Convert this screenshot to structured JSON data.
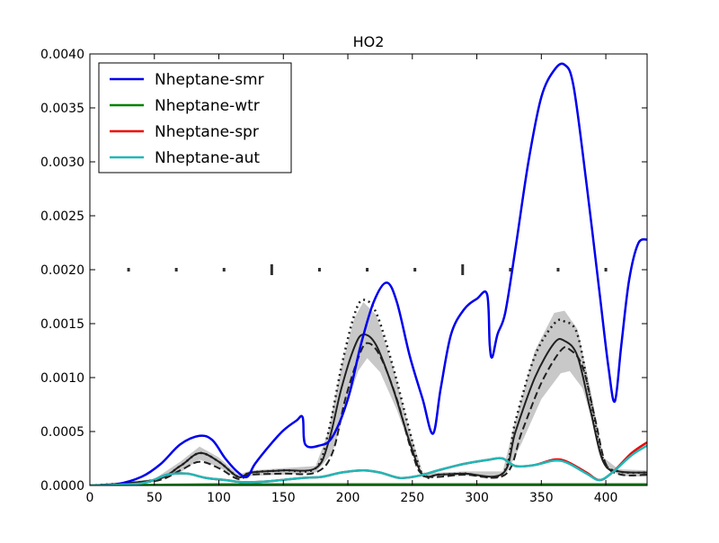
{
  "chart_data": {
    "type": "line",
    "title": "HO2",
    "xlabel": "",
    "ylabel": "",
    "xlim": [
      0,
      432
    ],
    "ylim": [
      0,
      0.004
    ],
    "grid": false,
    "legend_position": "top-left",
    "x_ticks": [
      0,
      50,
      100,
      150,
      200,
      250,
      300,
      350,
      400
    ],
    "x_tick_labels": [
      "0",
      "50",
      "100",
      "150",
      "200",
      "250",
      "300",
      "350",
      "400"
    ],
    "y_ticks": [
      0,
      0.0005,
      0.001,
      0.0015,
      0.002,
      0.0025,
      0.003,
      0.0035,
      0.004
    ],
    "y_tick_labels": [
      "0.0000",
      "0.0005",
      "0.0010",
      "0.0015",
      "0.0020",
      "0.0025",
      "0.0030",
      "0.0035",
      "0.0040"
    ],
    "series": [
      {
        "name": "Nheptane-smr",
        "color": "#0000ee",
        "points": [
          [
            0,
            0
          ],
          [
            20,
            1e-05
          ],
          [
            40,
            8e-05
          ],
          [
            55,
            0.0002
          ],
          [
            70,
            0.00038
          ],
          [
            85,
            0.00046
          ],
          [
            95,
            0.00042
          ],
          [
            105,
            0.00025
          ],
          [
            115,
            0.00012
          ],
          [
            122,
            8e-05
          ],
          [
            128,
            0.0002
          ],
          [
            140,
            0.00038
          ],
          [
            150,
            0.00051
          ],
          [
            160,
            0.0006
          ],
          [
            165,
            0.00063
          ],
          [
            167,
            0.00038
          ],
          [
            178,
            0.00037
          ],
          [
            188,
            0.00045
          ],
          [
            200,
            0.0008
          ],
          [
            210,
            0.0013
          ],
          [
            220,
            0.0017
          ],
          [
            230,
            0.00188
          ],
          [
            238,
            0.0017
          ],
          [
            248,
            0.0012
          ],
          [
            258,
            0.0008
          ],
          [
            266,
            0.00048
          ],
          [
            272,
            0.0009
          ],
          [
            280,
            0.0014
          ],
          [
            290,
            0.00163
          ],
          [
            300,
            0.00173
          ],
          [
            308,
            0.00177
          ],
          [
            310,
            0.0013
          ],
          [
            312,
            0.00119
          ],
          [
            316,
            0.0014
          ],
          [
            322,
            0.0016
          ],
          [
            330,
            0.0022
          ],
          [
            340,
            0.003
          ],
          [
            350,
            0.0036
          ],
          [
            360,
            0.00385
          ],
          [
            368,
            0.0039
          ],
          [
            375,
            0.0037
          ],
          [
            385,
            0.0028
          ],
          [
            395,
            0.0018
          ],
          [
            402,
            0.0011
          ],
          [
            407,
            0.00078
          ],
          [
            412,
            0.0013
          ],
          [
            418,
            0.0019
          ],
          [
            425,
            0.00224
          ],
          [
            432,
            0.00228
          ]
        ]
      },
      {
        "name": "Nheptane-wtr",
        "color": "#008000",
        "points": [
          [
            0,
            0
          ],
          [
            100,
            1e-05
          ],
          [
            200,
            1e-05
          ],
          [
            300,
            1e-05
          ],
          [
            400,
            1e-05
          ],
          [
            432,
            1e-05
          ]
        ]
      },
      {
        "name": "Nheptane-spr",
        "color": "#ee0000",
        "points": [
          [
            0,
            0
          ],
          [
            40,
            2e-05
          ],
          [
            60,
            0.0001
          ],
          [
            75,
            0.00011
          ],
          [
            90,
            7e-05
          ],
          [
            105,
            5e-05
          ],
          [
            120,
            3e-05
          ],
          [
            140,
            4e-05
          ],
          [
            165,
            7e-05
          ],
          [
            180,
            8e-05
          ],
          [
            195,
            0.00012
          ],
          [
            212,
            0.00014
          ],
          [
            225,
            0.00012
          ],
          [
            240,
            7e-05
          ],
          [
            255,
            9e-05
          ],
          [
            270,
            0.00014
          ],
          [
            290,
            0.0002
          ],
          [
            310,
            0.00024
          ],
          [
            320,
            0.00025
          ],
          [
            330,
            0.00018
          ],
          [
            345,
            0.00019
          ],
          [
            360,
            0.00024
          ],
          [
            370,
            0.00022
          ],
          [
            385,
            0.00012
          ],
          [
            395,
            5e-05
          ],
          [
            405,
            0.00012
          ],
          [
            420,
            0.0003
          ],
          [
            432,
            0.0004
          ]
        ]
      },
      {
        "name": "Nheptane-aut",
        "color": "#20b8b8",
        "points": [
          [
            0,
            0
          ],
          [
            40,
            2e-05
          ],
          [
            60,
            0.0001
          ],
          [
            75,
            0.00011
          ],
          [
            90,
            7e-05
          ],
          [
            105,
            5e-05
          ],
          [
            120,
            3e-05
          ],
          [
            140,
            4e-05
          ],
          [
            165,
            7e-05
          ],
          [
            180,
            8e-05
          ],
          [
            195,
            0.00012
          ],
          [
            212,
            0.00014
          ],
          [
            225,
            0.00012
          ],
          [
            240,
            7e-05
          ],
          [
            255,
            9e-05
          ],
          [
            270,
            0.00014
          ],
          [
            290,
            0.0002
          ],
          [
            310,
            0.00024
          ],
          [
            320,
            0.00025
          ],
          [
            330,
            0.00018
          ],
          [
            345,
            0.00019
          ],
          [
            360,
            0.00023
          ],
          [
            370,
            0.00021
          ],
          [
            385,
            0.00011
          ],
          [
            395,
            5e-05
          ],
          [
            405,
            0.00012
          ],
          [
            420,
            0.00028
          ],
          [
            432,
            0.00037
          ]
        ]
      }
    ],
    "reference_curves": [
      {
        "style": "solid",
        "color": "#202020",
        "points": [
          [
            0,
            0
          ],
          [
            50,
            5e-05
          ],
          [
            70,
            0.00018
          ],
          [
            85,
            0.0003
          ],
          [
            100,
            0.00022
          ],
          [
            115,
            8e-05
          ],
          [
            125,
            0.00012
          ],
          [
            150,
            0.00014
          ],
          [
            175,
            0.00016
          ],
          [
            185,
            0.0004
          ],
          [
            195,
            0.0009
          ],
          [
            205,
            0.00128
          ],
          [
            212,
            0.0014
          ],
          [
            222,
            0.0013
          ],
          [
            235,
            0.0009
          ],
          [
            248,
            0.0004
          ],
          [
            258,
            0.0001
          ],
          [
            270,
            0.0001
          ],
          [
            290,
            0.00011
          ],
          [
            320,
            0.00011
          ],
          [
            330,
            0.0005
          ],
          [
            345,
            0.001
          ],
          [
            360,
            0.00132
          ],
          [
            368,
            0.00134
          ],
          [
            378,
            0.0012
          ],
          [
            388,
            0.0007
          ],
          [
            398,
            0.00022
          ],
          [
            410,
            0.00013
          ],
          [
            432,
            0.00012
          ]
        ]
      },
      {
        "style": "dashed",
        "color": "#202020",
        "points": [
          [
            0,
            0
          ],
          [
            50,
            4e-05
          ],
          [
            70,
            0.00014
          ],
          [
            85,
            0.00022
          ],
          [
            100,
            0.00016
          ],
          [
            115,
            6e-05
          ],
          [
            125,
            0.0001
          ],
          [
            150,
            0.00011
          ],
          [
            175,
            0.00012
          ],
          [
            188,
            0.0003
          ],
          [
            198,
            0.0008
          ],
          [
            208,
            0.00118
          ],
          [
            215,
            0.00132
          ],
          [
            225,
            0.0012
          ],
          [
            238,
            0.0008
          ],
          [
            250,
            0.0003
          ],
          [
            260,
            9e-05
          ],
          [
            290,
            0.0001
          ],
          [
            322,
            0.0001
          ],
          [
            335,
            0.0005
          ],
          [
            350,
            0.00095
          ],
          [
            365,
            0.00125
          ],
          [
            372,
            0.00126
          ],
          [
            382,
            0.0011
          ],
          [
            392,
            0.0006
          ],
          [
            400,
            0.0002
          ],
          [
            412,
            0.0001
          ],
          [
            432,
            0.0001
          ]
        ]
      },
      {
        "style": "dotted",
        "color": "#202020",
        "points": [
          [
            0,
            0
          ],
          [
            50,
            5e-05
          ],
          [
            70,
            0.00018
          ],
          [
            85,
            0.0003
          ],
          [
            100,
            0.00022
          ],
          [
            115,
            8e-05
          ],
          [
            125,
            0.00012
          ],
          [
            150,
            0.00014
          ],
          [
            175,
            0.00016
          ],
          [
            185,
            0.0005
          ],
          [
            195,
            0.0011
          ],
          [
            205,
            0.00158
          ],
          [
            212,
            0.00172
          ],
          [
            222,
            0.0016
          ],
          [
            235,
            0.0011
          ],
          [
            248,
            0.0005
          ],
          [
            258,
            0.0001
          ],
          [
            270,
            0.0001
          ],
          [
            290,
            0.00011
          ],
          [
            320,
            0.00011
          ],
          [
            330,
            0.0006
          ],
          [
            345,
            0.0012
          ],
          [
            360,
            0.0015
          ],
          [
            368,
            0.00152
          ],
          [
            378,
            0.0014
          ],
          [
            388,
            0.0008
          ],
          [
            398,
            0.00024
          ],
          [
            410,
            0.00013
          ],
          [
            432,
            0.00012
          ]
        ]
      }
    ],
    "band": {
      "color": "#c8c8c8",
      "upper": [
        [
          0,
          0
        ],
        [
          50,
          6e-05
        ],
        [
          70,
          0.00022
        ],
        [
          85,
          0.00036
        ],
        [
          100,
          0.00026
        ],
        [
          115,
          0.0001
        ],
        [
          125,
          0.00014
        ],
        [
          150,
          0.00016
        ],
        [
          175,
          0.00018
        ],
        [
          185,
          0.0005
        ],
        [
          195,
          0.0011
        ],
        [
          205,
          0.00155
        ],
        [
          212,
          0.0017
        ],
        [
          222,
          0.00158
        ],
        [
          235,
          0.0011
        ],
        [
          248,
          0.0005
        ],
        [
          258,
          0.00012
        ],
        [
          270,
          0.00012
        ],
        [
          290,
          0.00013
        ],
        [
          320,
          0.00013
        ],
        [
          330,
          0.0006
        ],
        [
          345,
          0.00125
        ],
        [
          360,
          0.0016
        ],
        [
          368,
          0.00162
        ],
        [
          378,
          0.00145
        ],
        [
          388,
          0.0009
        ],
        [
          398,
          0.00026
        ],
        [
          410,
          0.00015
        ],
        [
          432,
          0.00014
        ]
      ],
      "lower": [
        [
          0,
          0
        ],
        [
          50,
          3e-05
        ],
        [
          70,
          0.00012
        ],
        [
          85,
          0.00024
        ],
        [
          100,
          0.00017
        ],
        [
          115,
          6e-05
        ],
        [
          125,
          9e-05
        ],
        [
          150,
          0.0001
        ],
        [
          175,
          0.00012
        ],
        [
          188,
          0.0003
        ],
        [
          198,
          0.0007
        ],
        [
          208,
          0.00106
        ],
        [
          215,
          0.00118
        ],
        [
          225,
          0.00105
        ],
        [
          238,
          0.0007
        ],
        [
          250,
          0.0003
        ],
        [
          260,
          8e-05
        ],
        [
          290,
          9e-05
        ],
        [
          322,
          9e-05
        ],
        [
          335,
          0.0004
        ],
        [
          350,
          0.0008
        ],
        [
          365,
          0.00104
        ],
        [
          372,
          0.00106
        ],
        [
          382,
          0.0009
        ],
        [
          392,
          0.0005
        ],
        [
          400,
          0.00016
        ],
        [
          412,
          9e-05
        ],
        [
          432,
          8e-05
        ]
      ]
    },
    "marker_rows": [
      {
        "y": 0.002,
        "color": "#303030",
        "x": [
          30,
          67,
          104,
          141,
          178,
          215,
          252,
          289,
          326,
          363,
          400
        ],
        "tall": [
          false,
          false,
          false,
          true,
          false,
          false,
          false,
          true,
          false,
          false,
          false
        ]
      }
    ]
  }
}
